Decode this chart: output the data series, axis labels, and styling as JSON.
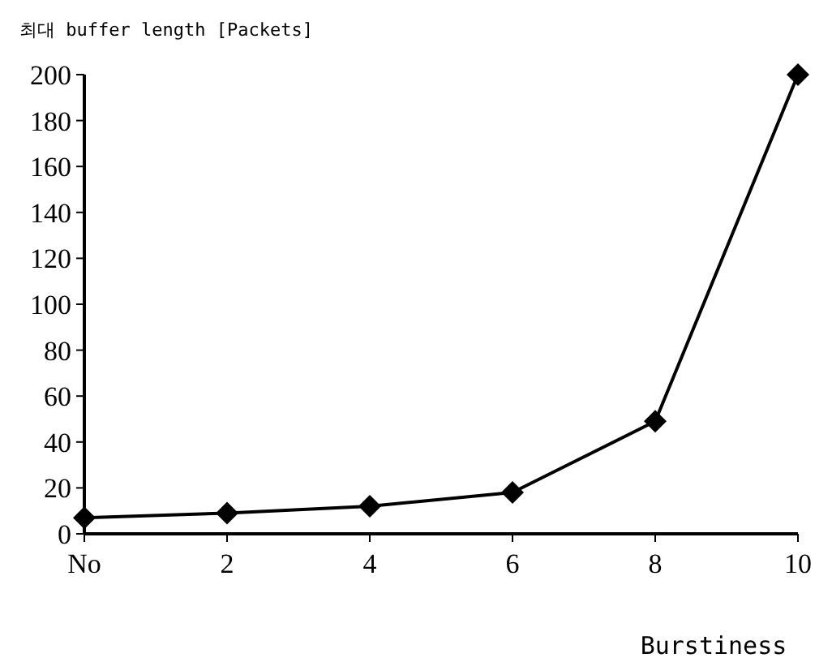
{
  "chart_data": {
    "type": "line",
    "ylabel": "최대 buffer length [Packets]",
    "xlabel": "Burstiness",
    "categories": [
      "No",
      "2",
      "4",
      "6",
      "8",
      "10"
    ],
    "values": [
      7,
      9,
      12,
      18,
      49,
      200
    ],
    "color": "#000000",
    "ylim": [
      0,
      200
    ],
    "yticks": [
      0,
      20,
      40,
      60,
      80,
      100,
      120,
      140,
      160,
      180,
      200
    ],
    "marker": "diamond",
    "line_style": "solid",
    "grid": false
  }
}
